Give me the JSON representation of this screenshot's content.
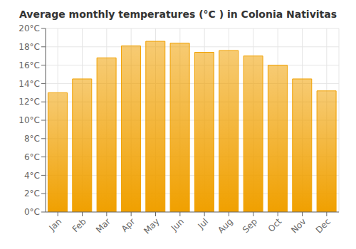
{
  "chart_data": {
    "type": "bar",
    "title": "Average monthly temperatures (°C ) in Colonia Nativitas",
    "categories": [
      "Jan",
      "Feb",
      "Mar",
      "Apr",
      "May",
      "Jun",
      "Jul",
      "Aug",
      "Sep",
      "Oct",
      "Nov",
      "Dec"
    ],
    "values": [
      13.0,
      14.5,
      16.8,
      18.1,
      18.6,
      18.4,
      17.4,
      17.6,
      17.0,
      16.0,
      14.5,
      13.2
    ],
    "color": "#F0A000",
    "ylim": [
      0,
      20
    ],
    "yticks": [
      {
        "value": 0,
        "label": "0°C"
      },
      {
        "value": 2,
        "label": "2°C"
      },
      {
        "value": 4,
        "label": "4°C"
      },
      {
        "value": 6,
        "label": "6°C"
      },
      {
        "value": 8,
        "label": "8°C"
      },
      {
        "value": 10,
        "label": "10°C"
      },
      {
        "value": 12,
        "label": "12°C"
      },
      {
        "value": 14,
        "label": "14°C"
      },
      {
        "value": 16,
        "label": "16°C"
      },
      {
        "value": 18,
        "label": "18°C"
      },
      {
        "value": 20,
        "label": "20°C"
      }
    ],
    "grid": true
  }
}
